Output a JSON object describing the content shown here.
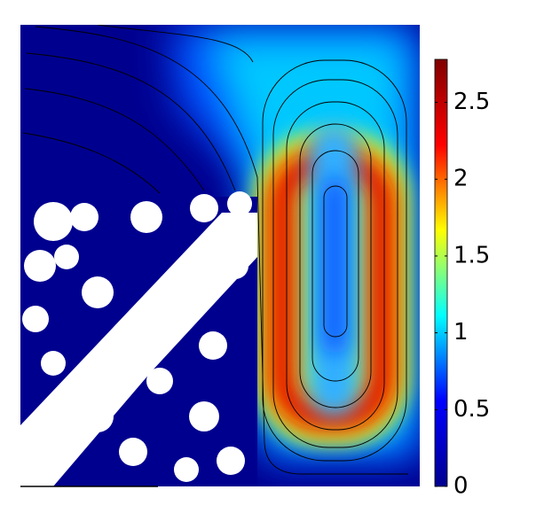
{
  "chart_data": {
    "type": "heatmap",
    "colorbar": {
      "clim": [
        0,
        2.78
      ],
      "ticks": [
        0,
        0.5,
        1,
        1.5,
        2,
        2.5
      ],
      "colors": [
        "#00008f",
        "#0000ff",
        "#00ffff",
        "#ffff00",
        "#ff0000",
        "#800000"
      ]
    }
  }
}
